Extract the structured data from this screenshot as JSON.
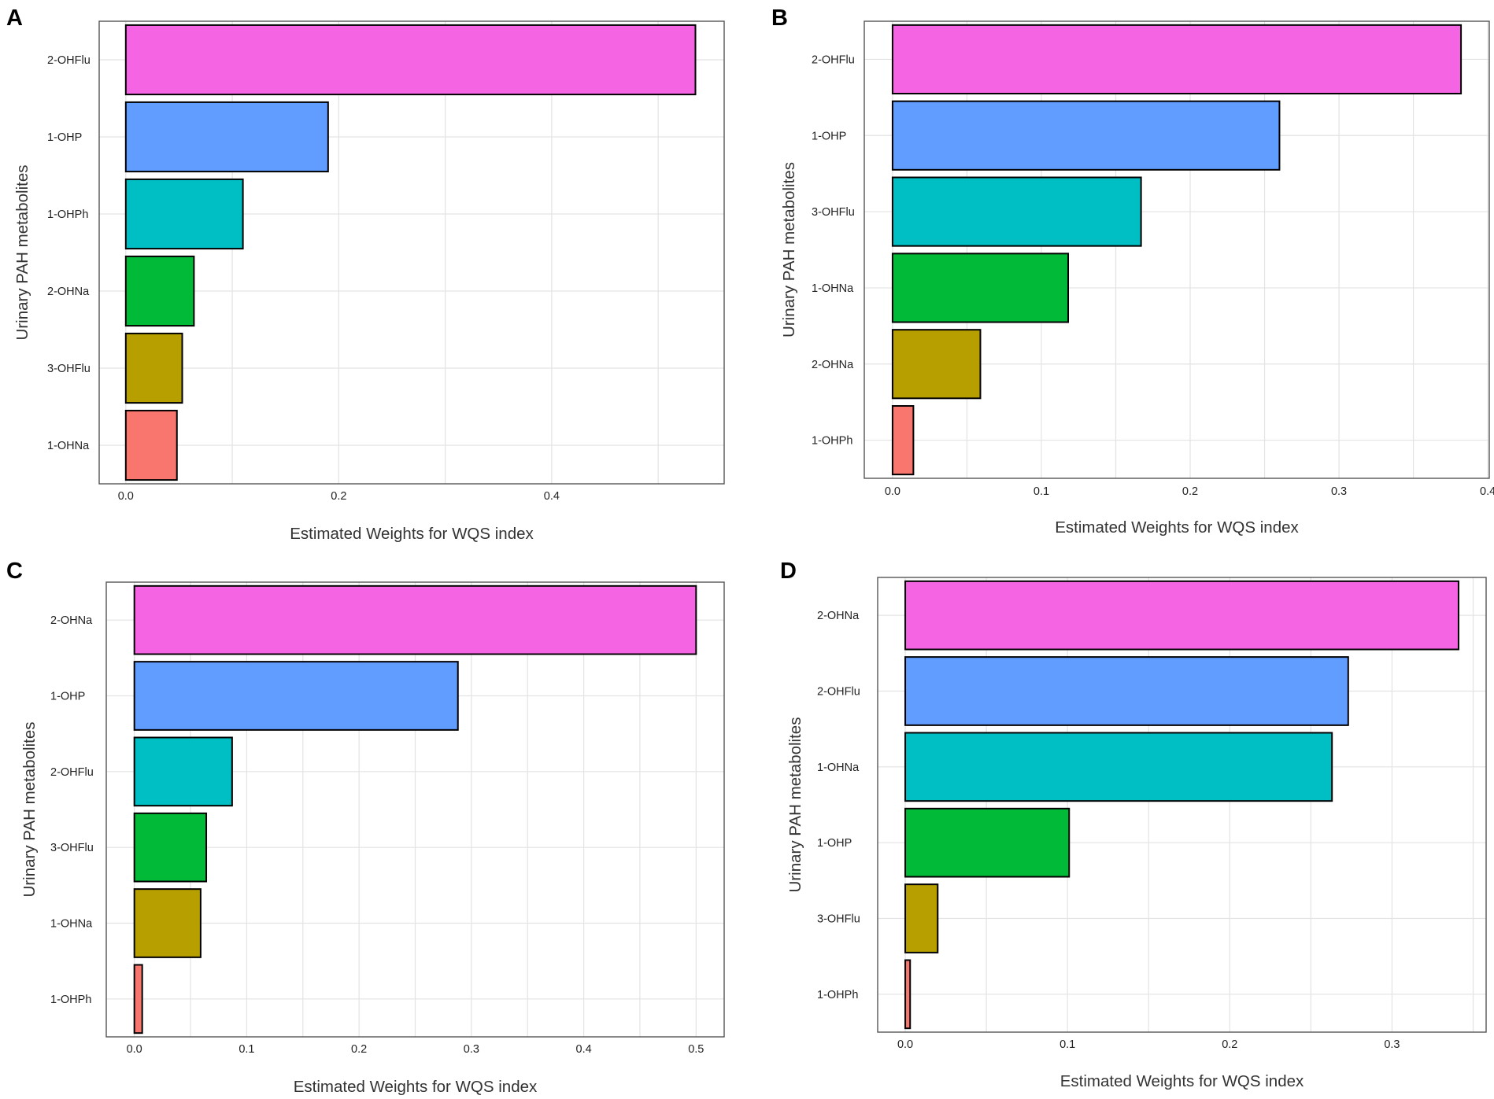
{
  "figure": {
    "y_axis_label": "Urinary PAH metabolites",
    "x_axis_label": "Estimated Weights for WQS index"
  },
  "colors": [
    "#F564E3",
    "#619CFF",
    "#00BFC4",
    "#00BA38",
    "#B79F00",
    "#F8766D"
  ],
  "chart_data": [
    {
      "type": "bar",
      "orientation": "horizontal",
      "panel": "A",
      "categories": [
        "2-OHFlu",
        "1-OHP",
        "1-OHPh",
        "2-OHNa",
        "3-OHFlu",
        "1-OHNa"
      ],
      "values": [
        0.535,
        0.19,
        0.11,
        0.064,
        0.053,
        0.048
      ],
      "xlim": [
        -0.025,
        0.562
      ],
      "ticks": [
        0.0,
        0.2,
        0.4
      ],
      "tick_labels": [
        "0.0",
        "0.2",
        "0.4"
      ],
      "xlabel": "Estimated Weights for WQS index",
      "ylabel": "Urinary PAH metabolites"
    },
    {
      "type": "bar",
      "orientation": "horizontal",
      "panel": "B",
      "categories": [
        "2-OHFlu",
        "1-OHP",
        "3-OHFlu",
        "1-OHNa",
        "2-OHNa",
        "1-OHPh"
      ],
      "values": [
        0.382,
        0.26,
        0.167,
        0.118,
        0.059,
        0.014
      ],
      "xlim": [
        -0.019,
        0.401
      ],
      "ticks": [
        0.0,
        0.1,
        0.2,
        0.3,
        0.4
      ],
      "tick_labels": [
        "0.0",
        "0.1",
        "0.2",
        "0.3",
        "0.4"
      ],
      "xlabel": "Estimated Weights for WQS index",
      "ylabel": "Urinary PAH metabolites"
    },
    {
      "type": "bar",
      "orientation": "horizontal",
      "panel": "C",
      "categories": [
        "2-OHNa",
        "1-OHP",
        "2-OHFlu",
        "3-OHFlu",
        "1-OHNa",
        "1-OHPh"
      ],
      "values": [
        0.5,
        0.288,
        0.087,
        0.064,
        0.059,
        0.007
      ],
      "xlim": [
        -0.025,
        0.525
      ],
      "ticks": [
        0.0,
        0.1,
        0.2,
        0.3,
        0.4,
        0.5
      ],
      "tick_labels": [
        "0.0",
        "0.1",
        "0.2",
        "0.3",
        "0.4",
        "0.5"
      ],
      "xlabel": "Estimated Weights for WQS index",
      "ylabel": "Urinary PAH metabolites"
    },
    {
      "type": "bar",
      "orientation": "horizontal",
      "panel": "D",
      "categories": [
        "2-OHNa",
        "2-OHFlu",
        "1-OHNa",
        "1-OHP",
        "3-OHFlu",
        "1-OHPh"
      ],
      "values": [
        0.341,
        0.273,
        0.263,
        0.101,
        0.02,
        0.003
      ],
      "xlim": [
        -0.017,
        0.358
      ],
      "ticks": [
        0.0,
        0.1,
        0.2,
        0.3
      ],
      "tick_labels": [
        "0.0",
        "0.1",
        "0.2",
        "0.3"
      ],
      "xlabel": "Estimated Weights for WQS index",
      "ylabel": "Urinary PAH metabolites"
    }
  ]
}
